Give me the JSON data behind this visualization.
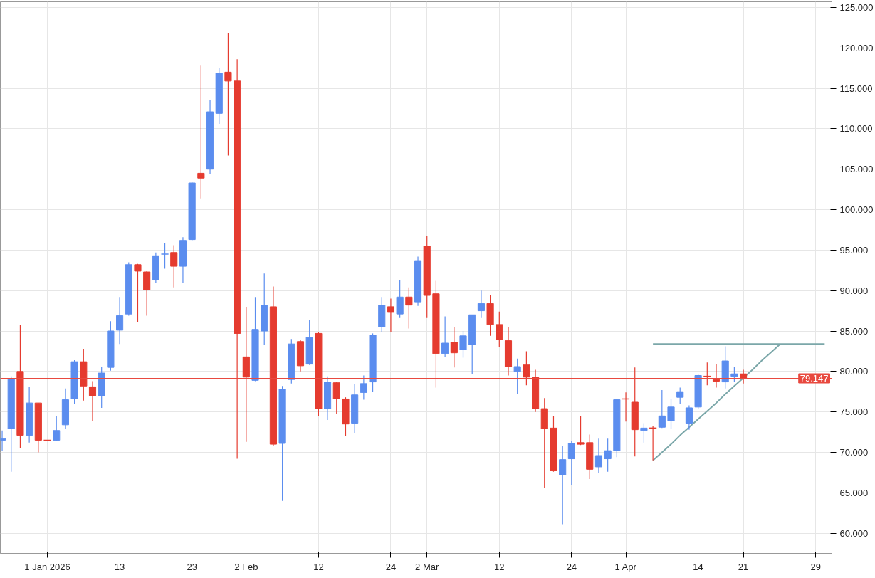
{
  "chart_data": {
    "type": "candlestick",
    "categories": [
      null,
      null,
      null,
      null,
      null,
      "1 Jan 2026",
      null,
      null,
      null,
      null,
      null,
      null,
      null,
      "13",
      null,
      null,
      null,
      null,
      null,
      null,
      null,
      "23",
      null,
      null,
      null,
      null,
      null,
      "2 Feb",
      null,
      null,
      null,
      null,
      null,
      null,
      null,
      "12",
      null,
      null,
      null,
      null,
      null,
      null,
      null,
      "24",
      null,
      null,
      null,
      "2 Mar",
      null,
      null,
      null,
      null,
      null,
      null,
      null,
      "12",
      null,
      null,
      null,
      null,
      null,
      null,
      null,
      "24",
      null,
      null,
      null,
      null,
      null,
      "1 Apr",
      null,
      null,
      null,
      null,
      null,
      null,
      null,
      "14",
      null,
      null,
      null,
      null,
      "21",
      null,
      null,
      null,
      null,
      null,
      null,
      null,
      "29",
      null
    ],
    "ohlc": [
      [
        71.5,
        72.7,
        70.2,
        71.7
      ],
      [
        72.9,
        79.4,
        67.6,
        79.1
      ],
      [
        80.0,
        85.8,
        70.5,
        72.1
      ],
      [
        72.1,
        78.1,
        71.2,
        76.1
      ],
      [
        76.1,
        76.1,
        70.0,
        71.5
      ],
      [
        71.5,
        71.5,
        71.5,
        71.5
      ],
      [
        71.5,
        74.5,
        71.4,
        72.7
      ],
      [
        73.4,
        77.9,
        72.9,
        76.5
      ],
      [
        76.6,
        81.4,
        76.0,
        81.2
      ],
      [
        81.2,
        82.8,
        76.4,
        78.2
      ],
      [
        78.1,
        78.8,
        73.9,
        77.0
      ],
      [
        77.0,
        80.6,
        75.5,
        79.8
      ],
      [
        80.5,
        86.2,
        80.1,
        85.0
      ],
      [
        85.1,
        89.2,
        83.4,
        86.9
      ],
      [
        87.1,
        93.5,
        86.9,
        93.2
      ],
      [
        93.2,
        93.3,
        86.1,
        92.4
      ],
      [
        92.3,
        92.4,
        86.9,
        90.1
      ],
      [
        91.3,
        94.7,
        90.9,
        94.3
      ],
      [
        94.5,
        95.9,
        92.7,
        94.6
      ],
      [
        94.7,
        95.6,
        90.4,
        93.0
      ],
      [
        93.0,
        96.6,
        90.9,
        96.2
      ],
      [
        96.3,
        103.4,
        96.2,
        103.3
      ],
      [
        104.5,
        117.8,
        101.4,
        103.9
      ],
      [
        105.0,
        113.6,
        104.4,
        112.1
      ],
      [
        111.9,
        117.5,
        110.6,
        116.9
      ],
      [
        117.0,
        121.8,
        106.7,
        115.9
      ],
      [
        115.9,
        118.6,
        69.2,
        84.7
      ],
      [
        81.8,
        88.0,
        71.3,
        79.3
      ],
      [
        78.9,
        89.2,
        78.8,
        85.2
      ],
      [
        85.0,
        92.1,
        83.3,
        88.2
      ],
      [
        88.0,
        90.5,
        70.8,
        71.0
      ],
      [
        71.1,
        78.2,
        64.0,
        77.8
      ],
      [
        79.0,
        84.0,
        78.5,
        83.4
      ],
      [
        83.7,
        83.9,
        80.0,
        80.7
      ],
      [
        80.9,
        86.4,
        80.8,
        84.2
      ],
      [
        84.7,
        84.9,
        74.5,
        75.4
      ],
      [
        75.4,
        79.4,
        74.0,
        78.7
      ],
      [
        78.6,
        78.7,
        74.7,
        76.6
      ],
      [
        76.6,
        76.8,
        72.0,
        73.5
      ],
      [
        73.6,
        78.4,
        72.4,
        77.1
      ],
      [
        77.4,
        79.5,
        76.5,
        78.5
      ],
      [
        78.7,
        84.7,
        77.5,
        84.5
      ],
      [
        85.5,
        89.2,
        84.9,
        88.2
      ],
      [
        88.0,
        89.0,
        84.9,
        87.3
      ],
      [
        87.1,
        91.3,
        86.6,
        89.2
      ],
      [
        89.2,
        90.4,
        85.3,
        88.2
      ],
      [
        88.6,
        94.2,
        88.1,
        93.7
      ],
      [
        95.5,
        96.8,
        86.6,
        89.4
      ],
      [
        89.6,
        91.2,
        78.0,
        82.2
      ],
      [
        82.2,
        86.8,
        81.8,
        83.5
      ],
      [
        83.6,
        85.5,
        80.5,
        82.3
      ],
      [
        82.7,
        85.0,
        81.7,
        84.4
      ],
      [
        83.3,
        87.0,
        79.7,
        87.0
      ],
      [
        87.5,
        90.0,
        86.6,
        88.4
      ],
      [
        88.4,
        89.4,
        84.4,
        85.8
      ],
      [
        85.8,
        87.4,
        83.0,
        83.9
      ],
      [
        83.8,
        85.5,
        79.5,
        80.6
      ],
      [
        80.0,
        81.6,
        77.2,
        80.6
      ],
      [
        80.8,
        82.5,
        78.3,
        79.3
      ],
      [
        79.3,
        80.2,
        75.0,
        75.4
      ],
      [
        75.4,
        76.7,
        65.6,
        72.9
      ],
      [
        73.0,
        74.5,
        67.6,
        67.8
      ],
      [
        67.2,
        70.8,
        61.1,
        69.1
      ],
      [
        69.2,
        71.4,
        66.0,
        71.1
      ],
      [
        71.2,
        74.5,
        70.9,
        71.0
      ],
      [
        71.2,
        72.2,
        66.7,
        67.9
      ],
      [
        68.2,
        71.7,
        67.4,
        69.6
      ],
      [
        69.2,
        71.7,
        67.6,
        70.2
      ],
      [
        70.2,
        76.6,
        69.4,
        76.5
      ],
      [
        76.6,
        77.4,
        73.8,
        76.5
      ],
      [
        76.2,
        80.5,
        69.5,
        72.8
      ],
      [
        72.7,
        73.6,
        71.2,
        73.0
      ],
      [
        73.0,
        73.3,
        69.0,
        72.9
      ],
      [
        73.1,
        77.7,
        73.0,
        74.5
      ],
      [
        73.9,
        76.6,
        72.9,
        75.6
      ],
      [
        76.8,
        78.0,
        76.0,
        77.5
      ],
      [
        73.6,
        75.8,
        72.8,
        75.5
      ],
      [
        75.6,
        79.6,
        75.4,
        79.5
      ],
      [
        79.4,
        81.1,
        78.3,
        79.3
      ],
      [
        79.0,
        80.9,
        78.0,
        78.8
      ],
      [
        78.7,
        83.1,
        77.9,
        81.3
      ],
      [
        79.4,
        80.6,
        78.7,
        79.7
      ],
      [
        79.7,
        80.2,
        78.5,
        79.15
      ],
      null,
      null,
      null,
      null,
      null,
      null,
      null,
      null,
      null
    ],
    "colors": [
      "#5b8def",
      "#5b8def",
      "#e53b2f",
      "#5b8def",
      "#e53b2f",
      "#e53b2f",
      "#5b8def",
      "#5b8def",
      "#5b8def",
      "#e53b2f",
      "#e53b2f",
      "#5b8def",
      "#5b8def",
      "#5b8def",
      "#5b8def",
      "#e53b2f",
      "#e53b2f",
      "#5b8def",
      "#5b8def",
      "#e53b2f",
      "#5b8def",
      "#5b8def",
      "#e53b2f",
      "#5b8def",
      "#5b8def",
      "#e53b2f",
      "#e53b2f",
      "#e53b2f",
      "#5b8def",
      "#5b8def",
      "#e53b2f",
      "#5b8def",
      "#5b8def",
      "#e53b2f",
      "#5b8def",
      "#e53b2f",
      "#5b8def",
      "#e53b2f",
      "#e53b2f",
      "#5b8def",
      "#5b8def",
      "#5b8def",
      "#5b8def",
      "#e53b2f",
      "#5b8def",
      "#e53b2f",
      "#5b8def",
      "#e53b2f",
      "#e53b2f",
      "#5b8def",
      "#e53b2f",
      "#5b8def",
      "#5b8def",
      "#5b8def",
      "#e53b2f",
      "#e53b2f",
      "#e53b2f",
      "#5b8def",
      "#e53b2f",
      "#e53b2f",
      "#e53b2f",
      "#e53b2f",
      "#5b8def",
      "#5b8def",
      "#e53b2f",
      "#e53b2f",
      "#5b8def",
      "#5b8def",
      "#5b8def",
      "#e53b2f",
      "#e53b2f",
      "#5b8def",
      "#e53b2f",
      "#5b8def",
      "#5b8def",
      "#5b8def",
      "#5b8def",
      "#5b8def",
      "#e53b2f",
      "#e53b2f",
      "#5b8def",
      "#5b8def",
      "#e53b2f",
      null,
      null,
      null,
      null,
      null,
      null,
      null,
      null,
      null
    ],
    "series": [
      {
        "type": "line",
        "color": "#7ba7a9",
        "values": [
          null,
          null,
          null,
          null,
          null,
          null,
          null,
          null,
          null,
          null,
          null,
          null,
          null,
          null,
          null,
          null,
          null,
          null,
          null,
          null,
          null,
          null,
          null,
          null,
          null,
          null,
          null,
          null,
          null,
          null,
          null,
          null,
          null,
          null,
          null,
          null,
          null,
          null,
          null,
          null,
          null,
          null,
          null,
          null,
          null,
          null,
          null,
          null,
          null,
          null,
          null,
          null,
          null,
          null,
          null,
          null,
          null,
          null,
          null,
          null,
          null,
          null,
          null,
          null,
          null,
          null,
          null,
          null,
          null,
          null,
          null,
          null,
          83.4,
          83.4,
          83.4,
          83.4,
          83.4,
          83.4,
          83.4,
          83.4,
          83.4,
          83.4,
          83.4,
          83.4,
          83.4,
          83.4,
          83.4,
          83.4,
          83.4,
          83.4,
          83.4,
          83.4
        ]
      },
      {
        "type": "line",
        "color": "#7ba7a9",
        "values": [
          null,
          null,
          null,
          null,
          null,
          null,
          null,
          null,
          null,
          null,
          null,
          null,
          null,
          null,
          null,
          null,
          null,
          null,
          null,
          null,
          null,
          null,
          null,
          null,
          null,
          null,
          null,
          null,
          null,
          null,
          null,
          null,
          null,
          null,
          null,
          null,
          null,
          null,
          null,
          null,
          null,
          null,
          null,
          null,
          null,
          null,
          null,
          null,
          null,
          null,
          null,
          null,
          null,
          null,
          null,
          null,
          null,
          null,
          null,
          null,
          null,
          null,
          null,
          null,
          null,
          null,
          null,
          null,
          null,
          null,
          null,
          null,
          69.0,
          70.0,
          71.0,
          72.1,
          73.1,
          74.1,
          75.1,
          76.1,
          77.2,
          78.2,
          79.2,
          80.2,
          81.3,
          82.3,
          83.3,
          null,
          null,
          null,
          null,
          null
        ]
      }
    ],
    "ref_lines": [
      {
        "axis": "y",
        "value": 79.147,
        "label": "79.147",
        "color": "#e8493f"
      }
    ],
    "ylim": [
      57.5,
      125.7
    ],
    "yticks": [
      {
        "value": 60,
        "label": "60.000"
      },
      {
        "value": 65,
        "label": "65.000"
      },
      {
        "value": 70,
        "label": "70.000"
      },
      {
        "value": 75,
        "label": "75.000"
      },
      {
        "value": 80,
        "label": "80.000"
      },
      {
        "value": 85,
        "label": "85.000"
      },
      {
        "value": 90,
        "label": "90.000"
      },
      {
        "value": 95,
        "label": "95.000"
      },
      {
        "value": 100,
        "label": "100.000"
      },
      {
        "value": 105,
        "label": "105.000"
      },
      {
        "value": 110,
        "label": "110.000"
      },
      {
        "value": 115,
        "label": "115.000"
      },
      {
        "value": 120,
        "label": "120.000"
      },
      {
        "value": 125,
        "label": "125.000"
      }
    ],
    "grid": true,
    "line_style": "solid",
    "marker": "none"
  }
}
